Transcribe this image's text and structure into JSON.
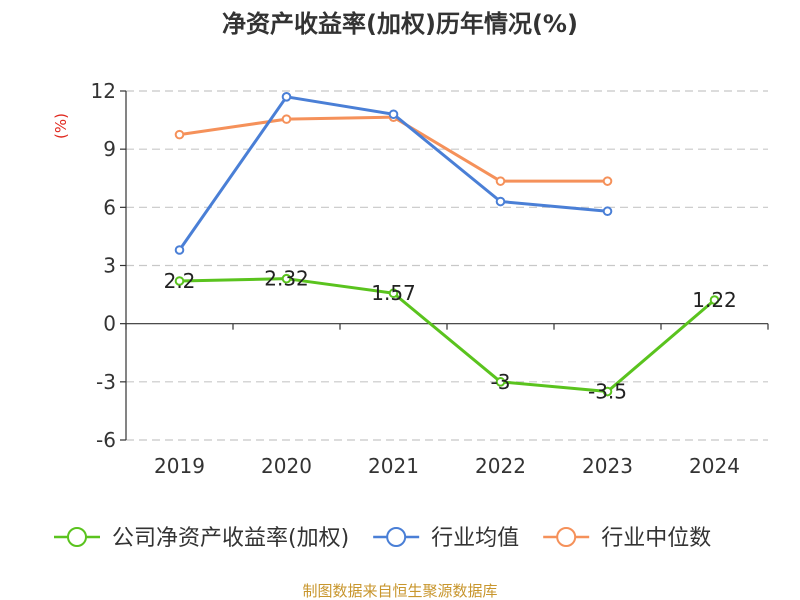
{
  "chart_data": {
    "type": "line",
    "title": "净资产收益率(加权)历年情况(%)",
    "ylabel": "(%)",
    "ylim": [
      -6,
      12
    ],
    "yticks": [
      12,
      9,
      6,
      3,
      0,
      -3,
      -6
    ],
    "categories": [
      "2019",
      "2020",
      "2021",
      "2022",
      "2023",
      "2024"
    ],
    "grid": true,
    "legend_position": "bottom",
    "series": [
      {
        "name": "公司净资产收益率(加权)",
        "color": "#5ac31e",
        "values": [
          2.2,
          2.32,
          1.57,
          -3,
          -3.5,
          1.22
        ],
        "labels": [
          "2.2",
          "2.32",
          "1.57",
          "-3",
          "-3.5",
          "1.22"
        ]
      },
      {
        "name": "行业均值",
        "color": "#4a7fd6",
        "values": [
          3.8,
          11.7,
          10.8,
          6.3,
          5.8,
          null
        ]
      },
      {
        "name": "行业中位数",
        "color": "#f5915a",
        "values": [
          9.75,
          10.55,
          10.65,
          7.35,
          7.35,
          null
        ]
      }
    ]
  },
  "source": "制图数据来自恒生聚源数据库",
  "colors": {
    "axis": "#333333",
    "grid": "#c8c8c8",
    "ylabel": "#e0281e",
    "source": "#c8962d"
  }
}
